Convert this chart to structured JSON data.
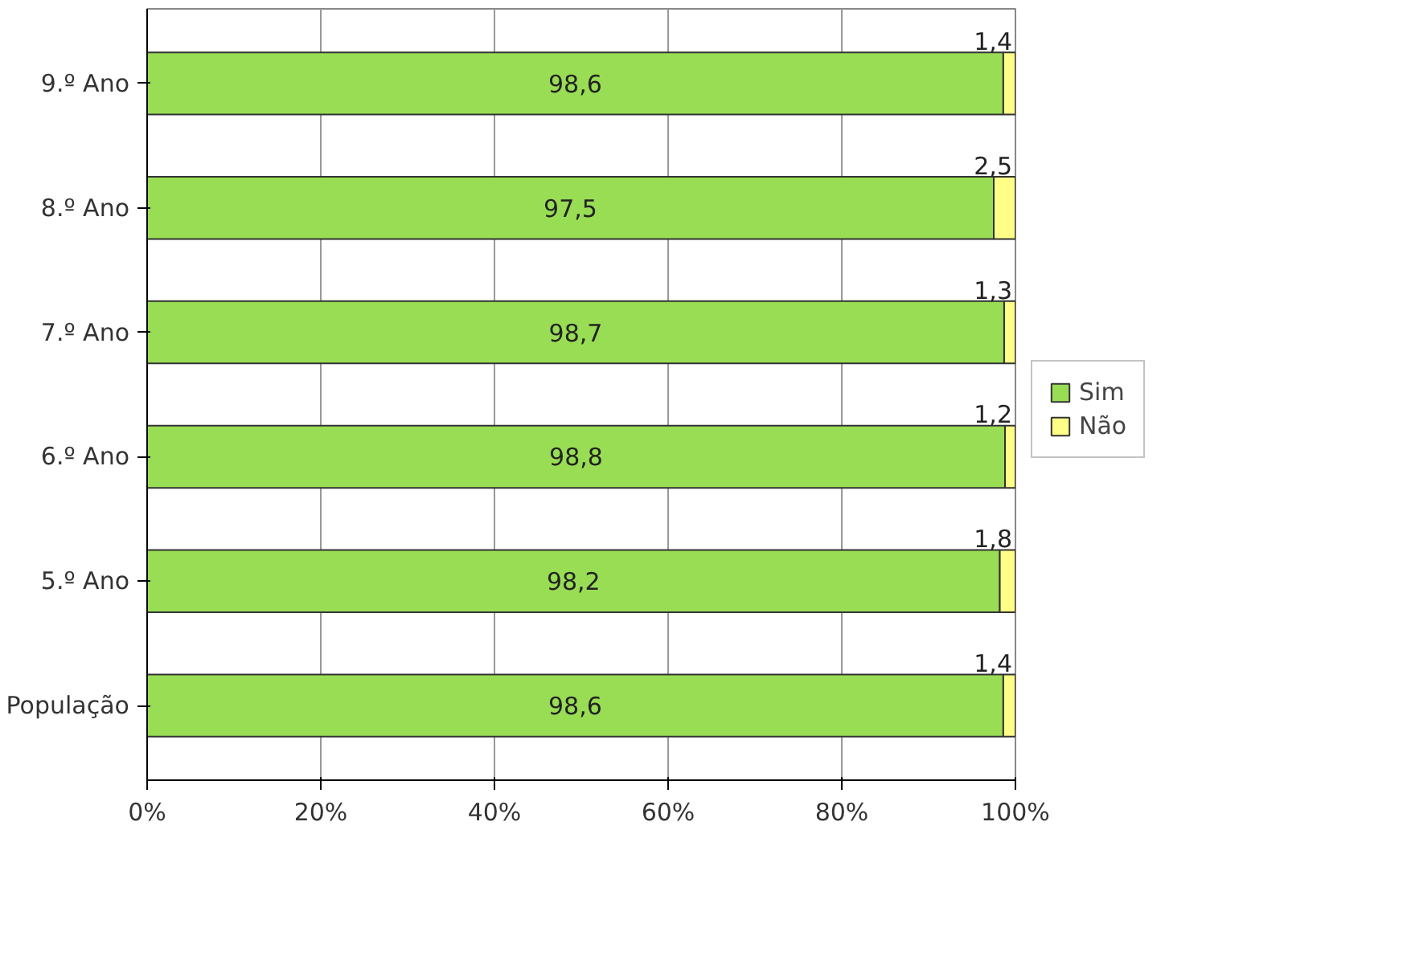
{
  "chart_data": {
    "type": "bar",
    "orientation": "horizontal",
    "stacked": true,
    "categories": [
      "9.º Ano",
      "8.º Ano",
      "7.º Ano",
      "6.º Ano",
      "5.º Ano",
      "População"
    ],
    "series": [
      {
        "name": "Sim",
        "color": "#99dd55",
        "values": [
          98.6,
          97.5,
          98.7,
          98.8,
          98.2,
          98.6
        ],
        "value_labels": [
          "98,6",
          "97,5",
          "98,7",
          "98,8",
          "98,2",
          "98,6"
        ]
      },
      {
        "name": "Não",
        "color": "#ffff88",
        "values": [
          1.4,
          2.5,
          1.3,
          1.2,
          1.8,
          1.4
        ],
        "value_labels": [
          "1,4",
          "2,5",
          "1,3",
          "1,2",
          "1,8",
          "1,4"
        ]
      }
    ],
    "xlim": [
      0,
      100
    ],
    "xticks": [
      {
        "value": 0,
        "label": "0%"
      },
      {
        "value": 20,
        "label": "20%"
      },
      {
        "value": 40,
        "label": "40%"
      },
      {
        "value": 60,
        "label": "60%"
      },
      {
        "value": 80,
        "label": "80%"
      },
      {
        "value": 100,
        "label": "100%"
      }
    ],
    "grid": "x",
    "legend": "right"
  }
}
